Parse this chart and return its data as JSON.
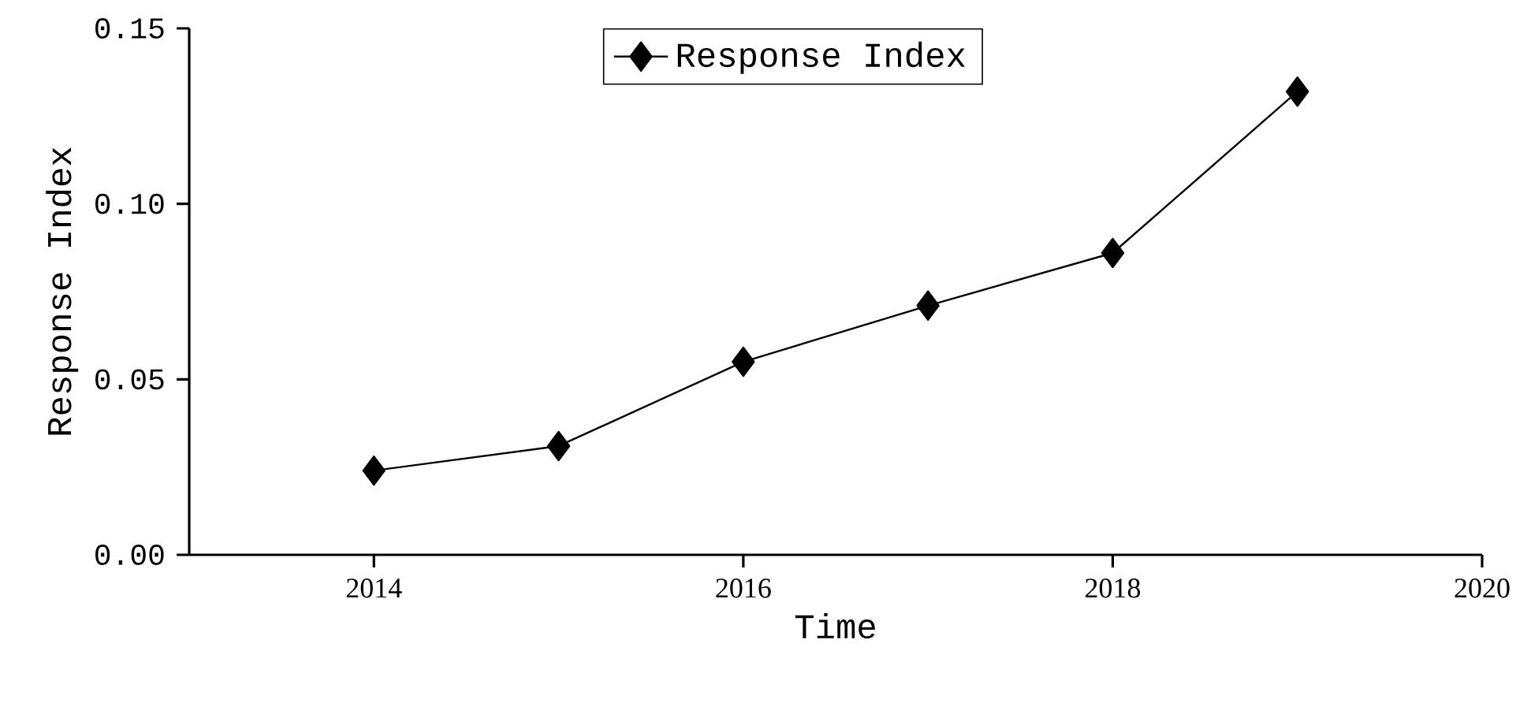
{
  "chart_data": {
    "type": "line",
    "xlabel": "Time",
    "ylabel": "Response Index",
    "x": [
      2014,
      2015,
      2016,
      2017,
      2018,
      2019
    ],
    "series": [
      {
        "name": "Response Index",
        "color": "#000000",
        "values": [
          0.024,
          0.031,
          0.055,
          0.071,
          0.086,
          0.132
        ]
      }
    ],
    "xlim": [
      2013,
      2020
    ],
    "xticks": [
      2014,
      2016,
      2018,
      2020
    ],
    "ylim": [
      0,
      0.15
    ],
    "yticks": [
      {
        "value": 0,
        "label": "0.00"
      },
      {
        "value": 0.05,
        "label": "0.05"
      },
      {
        "value": 0.1,
        "label": "0.10"
      },
      {
        "value": 0.15,
        "label": "0.15"
      }
    ],
    "marker": "diamond",
    "line_style": "solid",
    "legend": "top",
    "grid": false
  }
}
